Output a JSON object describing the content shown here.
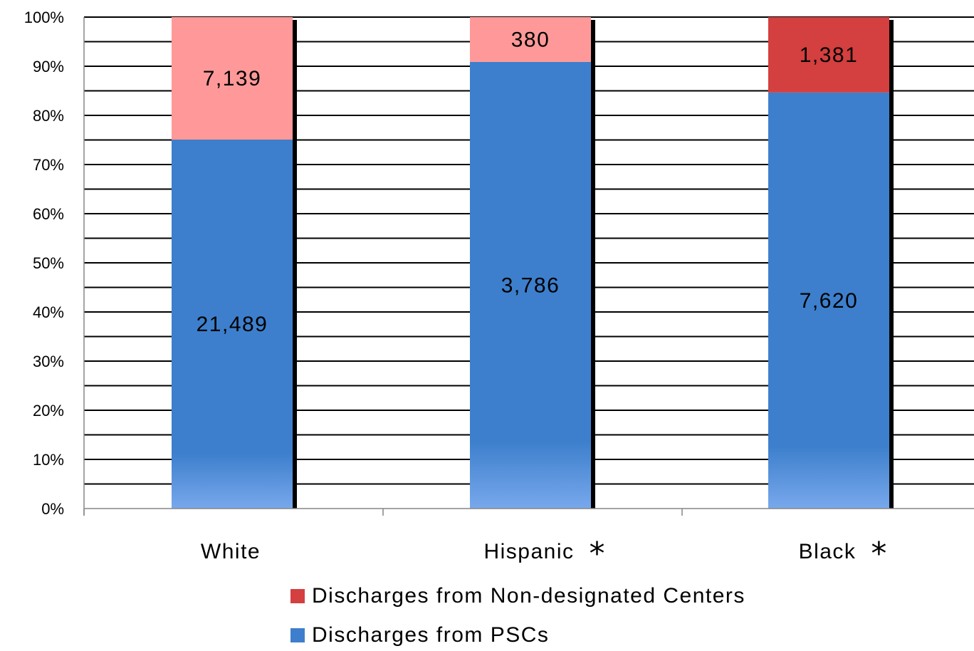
{
  "chart_data": {
    "type": "bar",
    "stacked": true,
    "normalized": true,
    "categories": [
      "White",
      "Hispanic",
      "Black"
    ],
    "category_markers": [
      "",
      "*",
      "*"
    ],
    "series": [
      {
        "name": "Discharges from PSCs",
        "values": [
          21489,
          3786,
          7620
        ],
        "labels": [
          "21,489",
          "3,786",
          "7,620"
        ],
        "color": "#3d7fcc"
      },
      {
        "name": "Discharges from Non-designated Centers",
        "values": [
          7139,
          380,
          1381
        ],
        "labels": [
          "7,139",
          "380",
          "1,381"
        ],
        "colors": [
          "#ff9999",
          "#ff9999",
          "#d43f3f"
        ],
        "color": "#d43f3f"
      }
    ],
    "ylim": [
      0,
      100
    ],
    "yticks": [
      "0%",
      "10%",
      "20%",
      "30%",
      "40%",
      "50%",
      "60%",
      "70%",
      "80%",
      "90%",
      "100%"
    ],
    "grid": true,
    "legend_position": "bottom"
  }
}
